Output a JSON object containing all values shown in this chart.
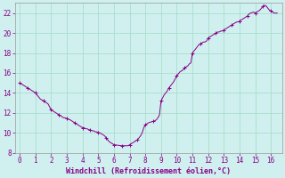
{
  "xlabel": "Windchill (Refroidissement éolien,°C)",
  "background_color": "#cff0ee",
  "grid_color": "#aaddcc",
  "line_color": "#880088",
  "xlim": [
    -0.3,
    16.7
  ],
  "ylim": [
    8,
    23
  ],
  "xticks": [
    0,
    1,
    2,
    3,
    4,
    5,
    6,
    7,
    8,
    9,
    10,
    11,
    12,
    13,
    14,
    15,
    16
  ],
  "yticks": [
    8,
    10,
    12,
    14,
    16,
    18,
    20,
    22
  ],
  "x": [
    0.0,
    0.1,
    0.2,
    0.3,
    0.4,
    0.5,
    0.6,
    0.7,
    0.8,
    0.9,
    1.0,
    1.1,
    1.2,
    1.3,
    1.4,
    1.5,
    1.6,
    1.7,
    1.8,
    1.9,
    2.0,
    2.1,
    2.2,
    2.3,
    2.4,
    2.5,
    2.6,
    2.7,
    2.8,
    2.9,
    3.0,
    3.1,
    3.2,
    3.3,
    3.4,
    3.5,
    3.6,
    3.7,
    3.8,
    3.9,
    4.0,
    4.1,
    4.2,
    4.3,
    4.4,
    4.5,
    4.6,
    4.7,
    4.8,
    4.9,
    5.0,
    5.1,
    5.2,
    5.3,
    5.4,
    5.5,
    5.6,
    5.7,
    5.8,
    5.9,
    6.0,
    6.1,
    6.2,
    6.3,
    6.4,
    6.5,
    6.6,
    6.7,
    6.8,
    6.9,
    7.0,
    7.1,
    7.2,
    7.3,
    7.4,
    7.5,
    7.6,
    7.7,
    7.8,
    7.9,
    8.0,
    8.1,
    8.2,
    8.3,
    8.4,
    8.5,
    8.6,
    8.7,
    8.8,
    8.9,
    9.0,
    9.1,
    9.2,
    9.3,
    9.4,
    9.5,
    9.6,
    9.7,
    9.8,
    9.9,
    10.0,
    10.1,
    10.2,
    10.3,
    10.4,
    10.5,
    10.6,
    10.7,
    10.8,
    10.9,
    11.0,
    11.1,
    11.2,
    11.3,
    11.4,
    11.5,
    11.6,
    11.7,
    11.8,
    11.9,
    12.0,
    12.1,
    12.2,
    12.3,
    12.4,
    12.5,
    12.6,
    12.7,
    12.8,
    12.9,
    13.0,
    13.1,
    13.2,
    13.3,
    13.4,
    13.5,
    13.6,
    13.7,
    13.8,
    13.9,
    14.0,
    14.1,
    14.2,
    14.3,
    14.4,
    14.5,
    14.6,
    14.7,
    14.8,
    14.9,
    15.0,
    15.1,
    15.2,
    15.3,
    15.4,
    15.5,
    15.6,
    15.7,
    15.8,
    15.9,
    16.0,
    16.1,
    16.2,
    16.3,
    16.4
  ],
  "y": [
    15.0,
    14.9,
    14.8,
    14.7,
    14.6,
    14.5,
    14.4,
    14.3,
    14.2,
    14.1,
    14.0,
    13.8,
    13.6,
    13.4,
    13.3,
    13.2,
    13.1,
    13.0,
    12.9,
    12.6,
    12.3,
    12.2,
    12.1,
    12.0,
    11.9,
    11.8,
    11.7,
    11.6,
    11.5,
    11.5,
    11.4,
    11.35,
    11.3,
    11.2,
    11.1,
    11.0,
    10.9,
    10.8,
    10.7,
    10.6,
    10.5,
    10.5,
    10.4,
    10.4,
    10.3,
    10.3,
    10.2,
    10.2,
    10.1,
    10.1,
    10.0,
    10.0,
    9.9,
    9.8,
    9.7,
    9.5,
    9.3,
    9.1,
    9.0,
    8.9,
    8.8,
    8.78,
    8.76,
    8.74,
    8.72,
    8.7,
    8.7,
    8.7,
    8.7,
    8.7,
    8.8,
    8.9,
    9.0,
    9.1,
    9.2,
    9.3,
    9.5,
    9.7,
    10.0,
    10.5,
    10.8,
    10.9,
    11.0,
    11.05,
    11.1,
    11.15,
    11.2,
    11.3,
    11.5,
    11.8,
    13.2,
    13.5,
    13.8,
    14.0,
    14.2,
    14.5,
    14.7,
    14.9,
    15.1,
    15.4,
    15.7,
    15.9,
    16.1,
    16.2,
    16.3,
    16.5,
    16.6,
    16.7,
    16.9,
    17.0,
    18.0,
    18.2,
    18.4,
    18.6,
    18.8,
    18.9,
    19.0,
    19.1,
    19.1,
    19.2,
    19.5,
    19.6,
    19.7,
    19.8,
    19.9,
    20.0,
    20.1,
    20.1,
    20.2,
    20.2,
    20.3,
    20.4,
    20.5,
    20.6,
    20.7,
    20.8,
    20.9,
    21.0,
    21.1,
    21.1,
    21.2,
    21.3,
    21.4,
    21.5,
    21.6,
    21.7,
    21.9,
    22.0,
    22.05,
    22.1,
    22.0,
    22.1,
    22.2,
    22.3,
    22.5,
    22.7,
    22.8,
    22.7,
    22.5,
    22.3,
    22.2,
    22.1,
    22.0,
    22.0,
    22.0
  ]
}
